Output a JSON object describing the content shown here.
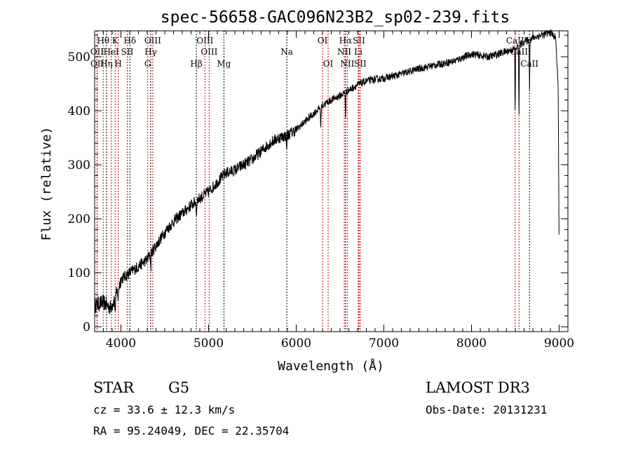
{
  "chart_data": {
    "type": "line",
    "title": "spec-56658-GAC096N23B2_sp02-239.fits",
    "xlabel": "Wavelength (Å)",
    "ylabel": "Flux (relative)",
    "xlim": [
      3700,
      9100
    ],
    "ylim": [
      -9,
      548
    ],
    "xticks": [
      4000,
      5000,
      6000,
      7000,
      8000,
      9000
    ],
    "yticks": [
      0,
      100,
      200,
      300,
      400,
      500
    ],
    "continuum": [
      [
        3700,
        40
      ],
      [
        3800,
        45
      ],
      [
        3880,
        35
      ],
      [
        3950,
        60
      ],
      [
        4000,
        88
      ],
      [
        4100,
        100
      ],
      [
        4200,
        112
      ],
      [
        4300,
        125
      ],
      [
        4400,
        150
      ],
      [
        4500,
        175
      ],
      [
        4600,
        195
      ],
      [
        4700,
        210
      ],
      [
        4800,
        225
      ],
      [
        4900,
        238
      ],
      [
        5000,
        250
      ],
      [
        5100,
        268
      ],
      [
        5200,
        285
      ],
      [
        5300,
        290
      ],
      [
        5400,
        300
      ],
      [
        5500,
        310
      ],
      [
        5600,
        325
      ],
      [
        5700,
        340
      ],
      [
        5800,
        350
      ],
      [
        5900,
        355
      ],
      [
        6000,
        365
      ],
      [
        6100,
        380
      ],
      [
        6200,
        395
      ],
      [
        6300,
        410
      ],
      [
        6400,
        420
      ],
      [
        6500,
        428
      ],
      [
        6600,
        438
      ],
      [
        6700,
        448
      ],
      [
        6800,
        455
      ],
      [
        6900,
        458
      ],
      [
        7000,
        460
      ],
      [
        7200,
        468
      ],
      [
        7400,
        478
      ],
      [
        7600,
        485
      ],
      [
        7800,
        492
      ],
      [
        8000,
        505
      ],
      [
        8200,
        500
      ],
      [
        8400,
        510
      ],
      [
        8500,
        515
      ],
      [
        8600,
        528
      ],
      [
        8700,
        535
      ],
      [
        8800,
        540
      ],
      [
        8900,
        545
      ],
      [
        8960,
        535
      ],
      [
        8990,
        440
      ],
      [
        9000,
        100
      ]
    ],
    "absorption": [
      [
        8498,
        120
      ],
      [
        8542,
        130
      ],
      [
        8662,
        90
      ],
      [
        6563,
        50
      ],
      [
        6280,
        40
      ],
      [
        5890,
        30
      ],
      [
        4861,
        30
      ],
      [
        4340,
        30
      ],
      [
        3934,
        30
      ],
      [
        3969,
        25
      ]
    ],
    "lines": [
      {
        "label": "Hθ",
        "wl": 3798,
        "row": 1,
        "color": "red"
      },
      {
        "label": "K",
        "wl": 3934,
        "row": 1,
        "color": "red"
      },
      {
        "label": "Hδ",
        "wl": 4102,
        "row": 1,
        "color": "black"
      },
      {
        "label": "OIII",
        "wl": 4363,
        "row": 1,
        "color": "red"
      },
      {
        "label": "OIII",
        "wl": 4959,
        "row": 1,
        "color": "red"
      },
      {
        "label": "OI",
        "wl": 6300,
        "row": 1,
        "color": "red"
      },
      {
        "label": "Hα",
        "wl": 6563,
        "row": 1,
        "color": "black"
      },
      {
        "label": "SII",
        "wl": 6716,
        "row": 1,
        "color": "red"
      },
      {
        "label": "CaII",
        "wl": 8498,
        "row": 1,
        "color": "red"
      },
      {
        "label": "OII",
        "wl": 3727,
        "row": 2,
        "color": "red"
      },
      {
        "label": "HeI",
        "wl": 3889,
        "row": 2,
        "color": "red"
      },
      {
        "label": "SII",
        "wl": 4072,
        "row": 2,
        "color": "red"
      },
      {
        "label": "Hγ",
        "wl": 4340,
        "row": 2,
        "color": "black"
      },
      {
        "label": "OIII",
        "wl": 5007,
        "row": 2,
        "color": "red"
      },
      {
        "label": "Na",
        "wl": 5893,
        "row": 2,
        "color": "black"
      },
      {
        "label": "NII",
        "wl": 6548,
        "row": 2,
        "color": "red"
      },
      {
        "label": "Li",
        "wl": 6708,
        "row": 2,
        "color": "red"
      },
      {
        "label": "CaII",
        "wl": 8542,
        "row": 2,
        "color": "red"
      },
      {
        "label": "OII",
        "wl": 3729,
        "row": 3,
        "color": "red"
      },
      {
        "label": "Hη",
        "wl": 3835,
        "row": 3,
        "color": "black"
      },
      {
        "label": "H",
        "wl": 3969,
        "row": 3,
        "color": "red"
      },
      {
        "label": "G",
        "wl": 4305,
        "row": 3,
        "color": "red"
      },
      {
        "label": "Hβ",
        "wl": 4861,
        "row": 3,
        "color": "black"
      },
      {
        "label": "Mg",
        "wl": 5175,
        "row": 3,
        "color": "black"
      },
      {
        "label": "OI",
        "wl": 6364,
        "row": 3,
        "color": "red"
      },
      {
        "label": "NII",
        "wl": 6583,
        "row": 3,
        "color": "red"
      },
      {
        "label": "SII",
        "wl": 6731,
        "row": 3,
        "color": "red"
      },
      {
        "label": "CaII",
        "wl": 8662,
        "row": 3,
        "color": "black"
      }
    ]
  },
  "info": {
    "class": "STAR",
    "subclass": "G5",
    "cz": "cz = 33.6 ± 12.3 km/s",
    "coords": "RA =  95.24049, DEC =  22.35704",
    "survey": "LAMOST DR3",
    "obs_date": "Obs-Date: 20131231"
  }
}
